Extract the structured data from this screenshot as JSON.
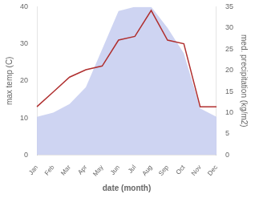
{
  "chart_data": {
    "type": "line",
    "categories": [
      "Jan",
      "Feb",
      "Mar",
      "Apr",
      "May",
      "Jun",
      "Jul",
      "Aug",
      "Sep",
      "Oct",
      "Nov",
      "Dec"
    ],
    "series": [
      {
        "type": "line",
        "color": "#b03030",
        "values": [
          13,
          17,
          21,
          23,
          24,
          31,
          32,
          39,
          31,
          30,
          13,
          13
        ]
      },
      {
        "type": "area",
        "color": "#c5cdf0",
        "axis": "y2",
        "values": [
          9,
          10,
          12,
          16,
          25,
          34,
          35,
          35,
          30,
          24,
          11,
          9
        ]
      }
    ],
    "xlabel": "date (month)",
    "ylabel": "max temp (C)",
    "y2label": "med. precipitation (kg/m2)",
    "ylim": [
      0,
      40
    ],
    "yticks": [
      0,
      10,
      20,
      30,
      40
    ],
    "y2lim": [
      0,
      35
    ],
    "y2ticks": [
      0,
      5,
      10,
      15,
      20,
      25,
      30,
      35
    ],
    "grid": false
  }
}
